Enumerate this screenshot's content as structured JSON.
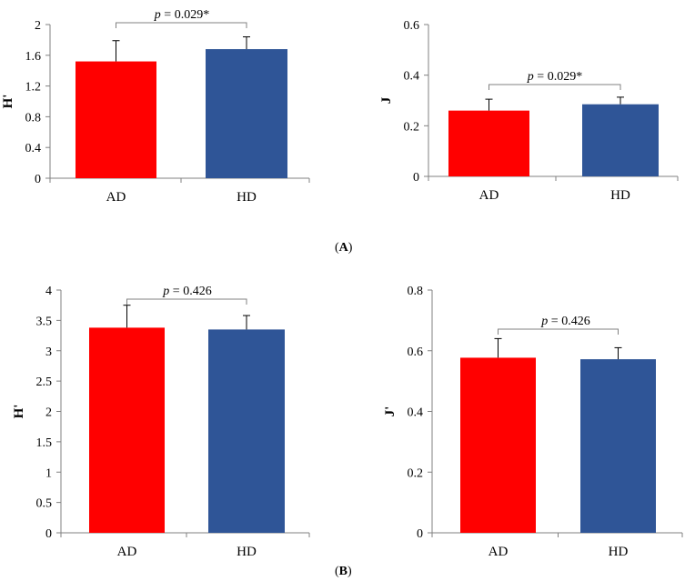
{
  "panel_labels": {
    "a": "A",
    "b": "B"
  },
  "colors": {
    "AD": "#ff0000",
    "HD": "#2f5597"
  },
  "chart_data": [
    {
      "id": "A-H",
      "type": "bar",
      "categories": [
        "AD",
        "HD"
      ],
      "values": [
        1.52,
        1.68
      ],
      "errors": [
        0.27,
        0.16
      ],
      "ylabel": "H'",
      "ylim": [
        0,
        2
      ],
      "yticks": [
        "0",
        "0.4",
        "0.8",
        "1.2",
        "1.6",
        "2"
      ],
      "ytick_values": [
        0,
        0.4,
        0.8,
        1.2,
        1.6,
        2
      ],
      "annotation": {
        "p": "p",
        "text": " = 0.029*"
      }
    },
    {
      "id": "A-J",
      "type": "bar",
      "categories": [
        "AD",
        "HD"
      ],
      "values": [
        0.26,
        0.285
      ],
      "errors": [
        0.045,
        0.028
      ],
      "ylabel": "J",
      "ylim": [
        0,
        0.6
      ],
      "yticks": [
        "0",
        "0.2",
        "0.4",
        "0.6"
      ],
      "ytick_values": [
        0,
        0.2,
        0.4,
        0.6
      ],
      "annotation": {
        "p": "p",
        "text": " = 0.029*"
      }
    },
    {
      "id": "B-H",
      "type": "bar",
      "categories": [
        "AD",
        "HD"
      ],
      "values": [
        3.38,
        3.35
      ],
      "errors": [
        0.37,
        0.23
      ],
      "ylabel": "H'",
      "ylim": [
        0,
        4
      ],
      "yticks": [
        "0",
        "0.5",
        "1",
        "1.5",
        "2",
        "2.5",
        "3",
        "3.5",
        "4"
      ],
      "ytick_values": [
        0,
        0.5,
        1,
        1.5,
        2,
        2.5,
        3,
        3.5,
        4
      ],
      "annotation": {
        "p": "p",
        "text": " = 0.426"
      }
    },
    {
      "id": "B-J",
      "type": "bar",
      "categories": [
        "AD",
        "HD"
      ],
      "values": [
        0.577,
        0.572
      ],
      "errors": [
        0.063,
        0.038
      ],
      "ylabel": "J'",
      "ylim": [
        0,
        0.8
      ],
      "yticks": [
        "0",
        "0.2",
        "0.4",
        "0.6",
        "0.8"
      ],
      "ytick_values": [
        0,
        0.2,
        0.4,
        0.6,
        0.8
      ],
      "annotation": {
        "p": "p",
        "text": " = 0.426"
      }
    }
  ]
}
